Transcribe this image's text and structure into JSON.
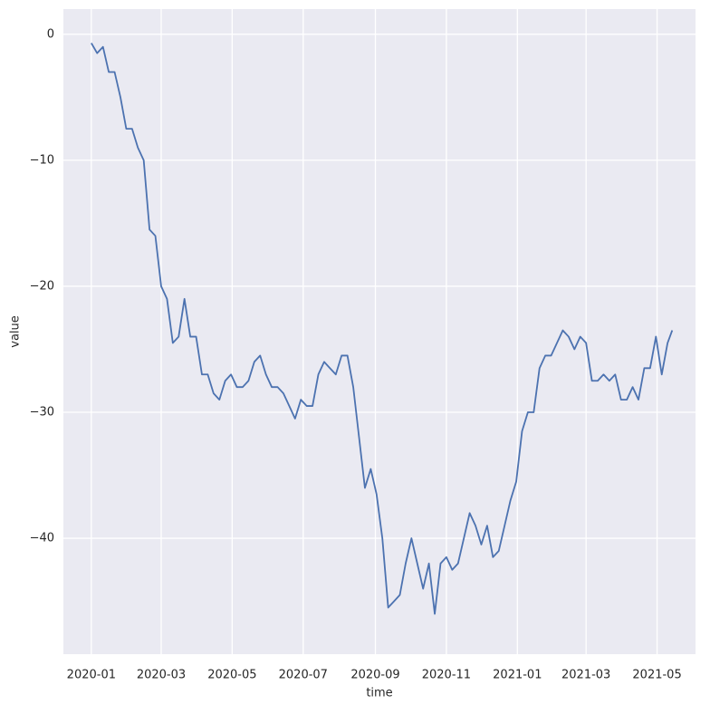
{
  "chart_data": {
    "type": "line",
    "xlabel": "time",
    "ylabel": "value",
    "x": [
      0,
      5,
      10,
      15,
      20,
      25,
      30,
      35,
      40,
      45,
      50,
      55,
      60,
      65,
      70,
      75,
      80,
      85,
      90,
      95,
      100,
      105,
      110,
      115,
      120,
      125,
      130,
      135,
      140,
      145,
      150,
      155,
      160,
      165,
      170,
      175,
      180,
      185,
      190,
      195,
      200,
      205,
      210,
      215,
      220,
      225,
      230,
      235,
      240,
      245,
      250,
      255,
      260,
      265,
      270,
      275,
      280,
      285,
      290,
      295,
      300,
      305,
      310,
      315,
      320,
      325,
      330,
      335,
      340,
      345,
      350,
      355,
      360,
      365,
      370,
      375,
      380,
      385,
      390,
      395,
      400,
      405,
      410,
      415,
      420,
      425,
      430,
      435,
      440,
      445,
      450,
      455,
      460,
      465,
      470,
      475,
      480,
      485,
      490,
      495,
      499
    ],
    "series": [
      {
        "name": "value",
        "color": "#4c72b0",
        "values": [
          -0.7,
          -1.5,
          -1.0,
          -3,
          -3,
          -5,
          -7.5,
          -7.5,
          -9,
          -10,
          -15.5,
          -16,
          -20,
          -21,
          -24.5,
          -24,
          -21,
          -24,
          -24,
          -27,
          -27,
          -28.5,
          -29,
          -27.5,
          -27,
          -28,
          -28,
          -27.5,
          -26,
          -25.5,
          -27,
          -28,
          -28,
          -28.5,
          -29.5,
          -30.5,
          -29,
          -29.5,
          -29.5,
          -27,
          -26,
          -26.5,
          -27,
          -25.5,
          -25.5,
          -28,
          -32,
          -36,
          -34.5,
          -36.5,
          -40,
          -45.5,
          -45,
          -44.5,
          -42,
          -40,
          -42,
          -44,
          -42,
          -46,
          -42,
          -41.5,
          -42.5,
          -42,
          -40,
          -38,
          -39,
          -40.5,
          -39,
          -41.5,
          -41,
          -39,
          -37,
          -35.5,
          -31.5,
          -30,
          -30,
          -26.5,
          -25.5,
          -25.5,
          -24.5,
          -23.5,
          -24,
          -25,
          -24,
          -24.5,
          -27.5,
          -27.5,
          -27,
          -27.5,
          -27,
          -29,
          -29,
          -28,
          -29,
          -26.5,
          -26.5,
          -24,
          -27,
          -24.5,
          -23.5
        ]
      }
    ],
    "xlim": [
      -24,
      519
    ],
    "xticks": [
      {
        "value": 0,
        "label": "2020-01"
      },
      {
        "value": 60,
        "label": "2020-03"
      },
      {
        "value": 121,
        "label": "2020-05"
      },
      {
        "value": 182,
        "label": "2020-07"
      },
      {
        "value": 244,
        "label": "2020-09"
      },
      {
        "value": 305,
        "label": "2020-11"
      },
      {
        "value": 366,
        "label": "2021-01"
      },
      {
        "value": 425,
        "label": "2021-03"
      },
      {
        "value": 486,
        "label": "2021-05"
      }
    ],
    "ylim": [
      -49.2,
      2.0
    ],
    "yticks": [
      {
        "value": -40,
        "label": "−40"
      },
      {
        "value": -30,
        "label": "−30"
      },
      {
        "value": -20,
        "label": "−20"
      },
      {
        "value": -10,
        "label": "−10"
      },
      0
    ],
    "grid": true
  }
}
